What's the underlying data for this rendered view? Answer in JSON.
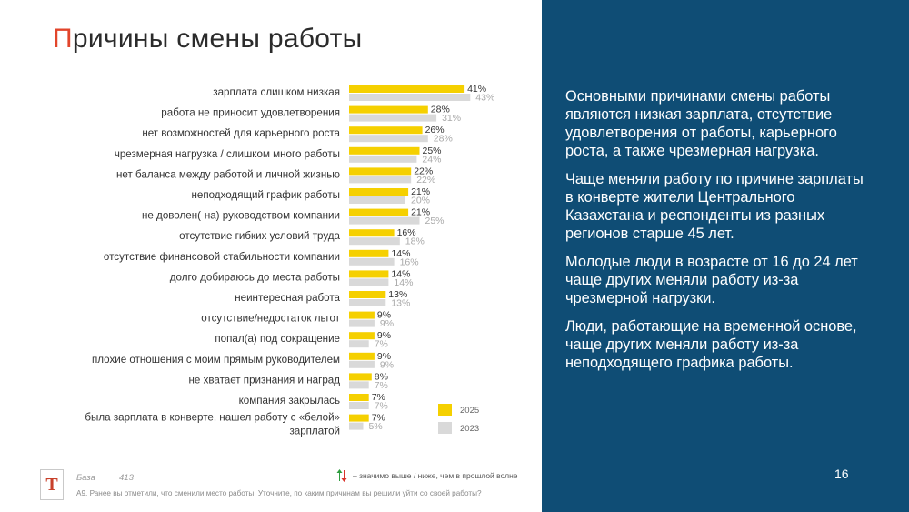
{
  "title": {
    "first_letter": "П",
    "rest": "ричины смены работы"
  },
  "chart_data": {
    "type": "bar",
    "orientation": "horizontal",
    "categories": [
      "зарплата слишком низкая",
      "работа не приносит удовлетворения",
      "нет возможностей для карьерного роста",
      "чрезмерная нагрузка / слишком много работы",
      "нет баланса между работой и личной жизнью",
      "неподходящий график работы",
      "не доволен(-на) руководством компании",
      "отсутствие гибких условий труда",
      "отсутствие финансовой стабильности компании",
      "долго добираюсь до места работы",
      "неинтересная работа",
      "отсутствие/недостаток льгот",
      "попал(а) под сокращение",
      "плохие отношения с моим прямым руководителем",
      "не хватает признания и наград",
      "компания закрылась",
      "была зарплата в конверте, нашел работу с «белой» зарплатой"
    ],
    "series": [
      {
        "name": "2025",
        "color": "#f5d000",
        "values": [
          41,
          28,
          26,
          25,
          22,
          21,
          21,
          16,
          14,
          14,
          13,
          9,
          9,
          9,
          8,
          7,
          7
        ]
      },
      {
        "name": "2023",
        "color": "#d9d9d9",
        "values": [
          43,
          31,
          28,
          24,
          22,
          20,
          25,
          18,
          16,
          14,
          13,
          9,
          7,
          9,
          7,
          7,
          5
        ]
      }
    ],
    "value_suffix": "%",
    "xlim": [
      0,
      45
    ],
    "legend_position": "bottom-right",
    "grid": false
  },
  "base": {
    "label": "База",
    "value": "413"
  },
  "significance_note": "– значимо выше / ниже, чем в прошлой волне",
  "footnote": "А9. Ранее вы отметили, что сменили место работы. Уточните, по каким причинам вы решили уйти со своей работы?",
  "logo_letter": "Т",
  "page_number": "16",
  "summary": [
    "Основными причинами смены работы являются низкая зарплата, отсутствие удовлетворения от работы, карьерного роста, а также чрезмерная нагрузка.",
    "Чаще меняли работу по причине зарплаты в конверте жители Центрального Казахстана и респонденты из разных регионов старше 45 лет.",
    "Молодые люди в возрасте от 16 до 24 лет чаще других меняли работу из-за чрезмерной нагрузки.",
    "Люди, работающие на временной основе, чаще других меняли работу из-за неподходящего графика работы."
  ],
  "colors": {
    "accent": "#e2452b",
    "panel": "#0f4d75",
    "bar_2025": "#f5d000",
    "bar_2023": "#d9d9d9"
  }
}
